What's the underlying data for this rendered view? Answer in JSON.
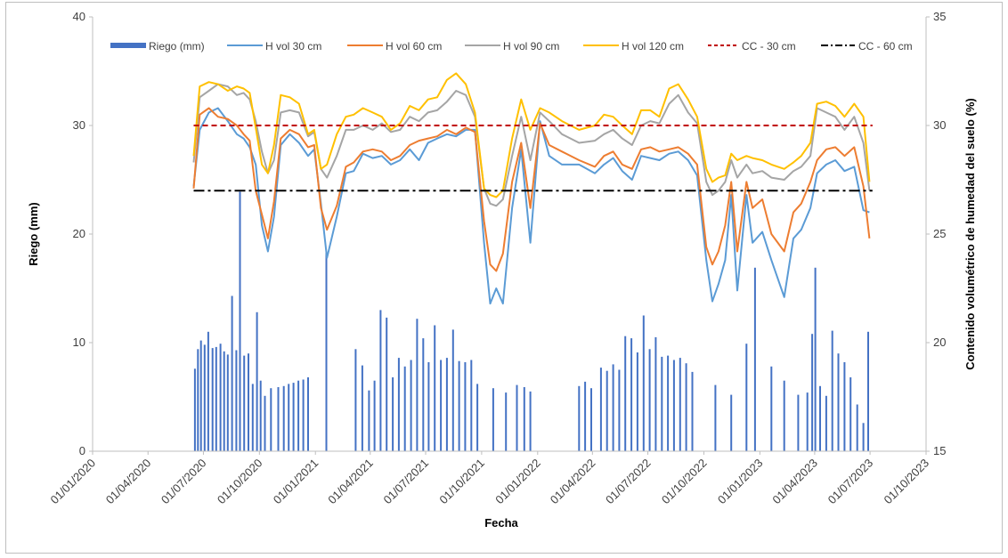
{
  "chart_data": {
    "type": "line",
    "xlabel": "Fecha",
    "ylabel": "Riego  (mm)",
    "y2label": "Contenido volumétrico de humedad  del suelo (%)",
    "ylim": [
      0,
      40
    ],
    "y2lim": [
      15,
      35
    ],
    "xlim": [
      "2020-01-01",
      "2023-10-01"
    ],
    "x_ticks": [
      "01/01/2020",
      "01/04/2020",
      "01/07/2020",
      "01/10/2020",
      "01/01/2021",
      "01/04/2021",
      "01/07/2021",
      "01/10/2021",
      "01/01/2022",
      "01/04/2022",
      "01/07/2022",
      "01/10/2022",
      "01/01/2023",
      "01/04/2023",
      "01/07/2023",
      "01/10/2023"
    ],
    "y_ticks": [
      0,
      10,
      20,
      30,
      40
    ],
    "y2_ticks": [
      15,
      20,
      25,
      30,
      35
    ],
    "grid": false,
    "legend_position": "top",
    "bars": {
      "name": "Riego (mm)",
      "color": "#4472c4",
      "x": [
        "2020-06-17",
        "2020-06-22",
        "2020-06-27",
        "2020-07-03",
        "2020-07-09",
        "2020-07-16",
        "2020-07-22",
        "2020-07-29",
        "2020-08-04",
        "2020-08-10",
        "2020-08-17",
        "2020-08-24",
        "2020-08-30",
        "2020-09-06",
        "2020-09-13",
        "2020-09-20",
        "2020-09-27",
        "2020-10-03",
        "2020-10-10",
        "2020-10-20",
        "2020-11-01",
        "2020-11-10",
        "2020-11-18",
        "2020-11-26",
        "2020-12-04",
        "2020-12-12",
        "2020-12-20",
        "2021-01-19",
        "2021-03-08",
        "2021-03-19",
        "2021-03-30",
        "2021-04-08",
        "2021-04-18",
        "2021-04-28",
        "2021-05-08",
        "2021-05-18",
        "2021-05-28",
        "2021-06-07",
        "2021-06-17",
        "2021-06-27",
        "2021-07-06",
        "2021-07-16",
        "2021-07-26",
        "2021-08-05",
        "2021-08-15",
        "2021-08-25",
        "2021-09-04",
        "2021-09-14",
        "2021-09-24",
        "2021-10-20",
        "2021-11-10",
        "2021-11-28",
        "2021-12-10",
        "2021-12-20",
        "2022-03-10",
        "2022-03-20",
        "2022-03-30",
        "2022-04-15",
        "2022-04-25",
        "2022-05-05",
        "2022-05-15",
        "2022-05-25",
        "2022-06-04",
        "2022-06-14",
        "2022-06-24",
        "2022-07-04",
        "2022-07-14",
        "2022-07-24",
        "2022-08-03",
        "2022-08-13",
        "2022-08-23",
        "2022-09-02",
        "2022-09-12",
        "2022-10-20",
        "2022-11-15",
        "2022-12-10",
        "2022-12-24",
        "2023-01-20",
        "2023-02-10",
        "2023-03-05",
        "2023-03-20",
        "2023-03-28",
        "2023-04-02",
        "2023-04-10",
        "2023-04-20",
        "2023-04-30",
        "2023-05-10",
        "2023-05-20",
        "2023-05-30",
        "2023-06-10",
        "2023-06-20",
        "2023-06-28"
      ],
      "values": [
        7.6,
        9.4,
        10.2,
        9.8,
        11,
        9.5,
        9.6,
        9.9,
        9.2,
        8.9,
        14.3,
        9.3,
        23.9,
        8.8,
        9,
        6.2,
        12.8,
        6.5,
        5.1,
        5.8,
        5.9,
        6,
        6.2,
        6.3,
        6.5,
        6.6,
        6.8,
        18.4,
        9.4,
        7.9,
        5.6,
        6.5,
        13,
        12.3,
        6.8,
        8.6,
        7.8,
        8.4,
        12.2,
        10.4,
        8.2,
        11.6,
        8.4,
        8.6,
        11.2,
        8.3,
        8.2,
        8.4,
        6.2,
        5.8,
        5.4,
        6.1,
        5.9,
        5.5,
        6,
        6.4,
        5.8,
        7.7,
        7.4,
        8,
        7.5,
        10.6,
        10.4,
        9.1,
        12.5,
        9.4,
        10.5,
        8.7,
        8.8,
        8.4,
        8.6,
        8.1,
        7.3,
        6.1,
        5.2,
        9.9,
        16.9,
        7.8,
        6.5,
        5.2,
        5.4,
        10.8,
        16.9,
        6,
        5.1,
        11.1,
        9,
        8.2,
        6.8,
        4.3,
        2.6,
        11
      ]
    },
    "series": [
      {
        "name": "H vol 30 cm",
        "color": "#5b9bd5",
        "x": [
          "2020-06-15",
          "2020-06-25",
          "2020-07-10",
          "2020-07-25",
          "2020-08-10",
          "2020-08-25",
          "2020-09-05",
          "2020-09-15",
          "2020-09-25",
          "2020-10-05",
          "2020-10-15",
          "2020-10-25",
          "2020-11-05",
          "2020-11-20",
          "2020-12-05",
          "2020-12-20",
          "2020-12-30",
          "2021-01-10",
          "2021-01-20",
          "2021-02-05",
          "2021-02-20",
          "2021-03-05",
          "2021-03-20",
          "2021-04-05",
          "2021-04-20",
          "2021-05-05",
          "2021-05-20",
          "2021-06-05",
          "2021-06-20",
          "2021-07-05",
          "2021-07-20",
          "2021-08-05",
          "2021-08-20",
          "2021-09-05",
          "2021-09-20",
          "2021-10-05",
          "2021-10-15",
          "2021-10-25",
          "2021-11-05",
          "2021-11-20",
          "2021-12-05",
          "2021-12-20",
          "2022-01-05",
          "2022-01-20",
          "2022-02-10",
          "2022-03-10",
          "2022-04-05",
          "2022-04-20",
          "2022-05-05",
          "2022-05-20",
          "2022-06-05",
          "2022-06-20",
          "2022-07-05",
          "2022-07-20",
          "2022-08-05",
          "2022-08-20",
          "2022-09-05",
          "2022-09-20",
          "2022-10-05",
          "2022-10-15",
          "2022-10-25",
          "2022-11-05",
          "2022-11-15",
          "2022-11-25",
          "2022-12-10",
          "2022-12-20",
          "2023-01-05",
          "2023-01-20",
          "2023-02-10",
          "2023-02-25",
          "2023-03-10",
          "2023-03-25",
          "2023-04-05",
          "2023-04-20",
          "2023-05-05",
          "2023-05-20",
          "2023-06-05",
          "2023-06-20",
          "2023-06-30"
        ],
        "values": [
          27.2,
          29.8,
          30.6,
          30.8,
          30.2,
          29.6,
          29.4,
          29,
          28.2,
          25.4,
          24.2,
          25.8,
          29.1,
          29.6,
          29.2,
          28.6,
          28.9,
          26.4,
          23.9,
          25.8,
          27.8,
          27.9,
          28.7,
          28.5,
          28.6,
          28.2,
          28.4,
          28.9,
          28.4,
          29.2,
          29.4,
          29.6,
          29.5,
          29.8,
          29.8,
          24.6,
          21.8,
          22.5,
          21.8,
          26.2,
          28.9,
          24.6,
          30.2,
          28.6,
          28.2,
          28.2,
          27.8,
          28.2,
          28.5,
          27.9,
          27.5,
          28.6,
          28.5,
          28.4,
          28.7,
          28.8,
          28.4,
          27.7,
          23.8,
          21.9,
          22.7,
          23.8,
          26.8,
          22.4,
          26.8,
          24.6,
          25.1,
          23.8,
          22.1,
          24.8,
          25.2,
          26.2,
          27.8,
          28.2,
          28.4,
          27.9,
          28.1,
          26.1,
          26
        ]
      },
      {
        "name": "H vol 60 cm",
        "color": "#ed7d31",
        "x": [
          "2020-06-15",
          "2020-06-25",
          "2020-07-10",
          "2020-07-25",
          "2020-08-10",
          "2020-08-25",
          "2020-09-05",
          "2020-09-15",
          "2020-09-25",
          "2020-10-05",
          "2020-10-15",
          "2020-10-25",
          "2020-11-05",
          "2020-11-20",
          "2020-12-05",
          "2020-12-20",
          "2020-12-30",
          "2021-01-10",
          "2021-01-20",
          "2021-02-05",
          "2021-02-20",
          "2021-03-05",
          "2021-03-20",
          "2021-04-05",
          "2021-04-20",
          "2021-05-05",
          "2021-05-20",
          "2021-06-05",
          "2021-06-20",
          "2021-07-05",
          "2021-07-20",
          "2021-08-05",
          "2021-08-20",
          "2021-09-05",
          "2021-09-20",
          "2021-10-05",
          "2021-10-15",
          "2021-10-25",
          "2021-11-05",
          "2021-11-20",
          "2021-12-05",
          "2021-12-20",
          "2022-01-05",
          "2022-01-20",
          "2022-02-10",
          "2022-03-10",
          "2022-04-05",
          "2022-04-20",
          "2022-05-05",
          "2022-05-20",
          "2022-06-05",
          "2022-06-20",
          "2022-07-05",
          "2022-07-20",
          "2022-08-05",
          "2022-08-20",
          "2022-09-05",
          "2022-09-20",
          "2022-10-05",
          "2022-10-15",
          "2022-10-25",
          "2022-11-05",
          "2022-11-15",
          "2022-11-25",
          "2022-12-10",
          "2022-12-20",
          "2023-01-05",
          "2023-01-20",
          "2023-02-10",
          "2023-02-25",
          "2023-03-10",
          "2023-03-25",
          "2023-04-05",
          "2023-04-20",
          "2023-05-05",
          "2023-05-20",
          "2023-06-05",
          "2023-06-20",
          "2023-06-30"
        ],
        "values": [
          27.1,
          30.5,
          30.8,
          30.4,
          30.3,
          30,
          29.6,
          29.3,
          27,
          25.9,
          24.8,
          26.5,
          29.4,
          29.8,
          29.6,
          29,
          29.1,
          26.2,
          25.2,
          26.3,
          28.1,
          28.3,
          28.8,
          28.9,
          28.8,
          28.4,
          28.6,
          29.1,
          29.3,
          29.4,
          29.5,
          29.8,
          29.6,
          29.9,
          29.7,
          25.6,
          23.6,
          23.3,
          24.1,
          27.4,
          29.2,
          26.2,
          30.1,
          29.1,
          28.8,
          28.4,
          28.1,
          28.6,
          28.8,
          28.2,
          28,
          28.9,
          29,
          28.8,
          28.9,
          29,
          28.7,
          28.2,
          24.4,
          23.6,
          24.2,
          25.4,
          27.4,
          24.2,
          27.4,
          26.2,
          26.6,
          25,
          24.2,
          26,
          26.4,
          27.4,
          28.4,
          28.9,
          29,
          28.6,
          29,
          27.2,
          24.8
        ]
      },
      {
        "name": "H vol 90 cm",
        "color": "#a5a5a5",
        "x": [
          "2020-06-15",
          "2020-06-25",
          "2020-07-10",
          "2020-07-25",
          "2020-08-10",
          "2020-08-25",
          "2020-09-05",
          "2020-09-15",
          "2020-09-25",
          "2020-10-05",
          "2020-10-15",
          "2020-10-25",
          "2020-11-05",
          "2020-11-20",
          "2020-12-05",
          "2020-12-20",
          "2020-12-30",
          "2021-01-10",
          "2021-01-20",
          "2021-02-05",
          "2021-02-20",
          "2021-03-05",
          "2021-03-20",
          "2021-04-05",
          "2021-04-20",
          "2021-05-05",
          "2021-05-20",
          "2021-06-05",
          "2021-06-20",
          "2021-07-05",
          "2021-07-20",
          "2021-08-05",
          "2021-08-20",
          "2021-09-05",
          "2021-09-20",
          "2021-10-05",
          "2021-10-15",
          "2021-10-25",
          "2021-11-05",
          "2021-11-20",
          "2021-12-05",
          "2021-12-20",
          "2022-01-05",
          "2022-01-20",
          "2022-02-10",
          "2022-03-10",
          "2022-04-05",
          "2022-04-20",
          "2022-05-05",
          "2022-05-20",
          "2022-06-05",
          "2022-06-20",
          "2022-07-05",
          "2022-07-20",
          "2022-08-05",
          "2022-08-20",
          "2022-09-05",
          "2022-09-20",
          "2022-10-05",
          "2022-10-15",
          "2022-10-25",
          "2022-11-05",
          "2022-11-15",
          "2022-11-25",
          "2022-12-10",
          "2022-12-20",
          "2023-01-05",
          "2023-01-20",
          "2023-02-10",
          "2023-02-25",
          "2023-03-10",
          "2023-03-25",
          "2023-04-05",
          "2023-04-20",
          "2023-05-05",
          "2023-05-20",
          "2023-06-05",
          "2023-06-20",
          "2023-06-30"
        ],
        "values": [
          28.3,
          31.3,
          31.6,
          31.9,
          31.8,
          31.4,
          31.5,
          31.2,
          30.2,
          28.8,
          27.8,
          28.4,
          30.6,
          30.7,
          30.6,
          29.5,
          29.7,
          28,
          27.6,
          28.6,
          29.8,
          29.8,
          30,
          29.8,
          30.1,
          29.7,
          29.8,
          30.4,
          30.2,
          30.6,
          30.7,
          31.1,
          31.6,
          31.4,
          30.4,
          27.1,
          26.4,
          26.3,
          26.6,
          28.6,
          30.4,
          28.4,
          30.6,
          30.2,
          29.6,
          29.2,
          29.3,
          29.6,
          29.8,
          29.4,
          29.1,
          30,
          30.2,
          30.1,
          31,
          31.4,
          30.6,
          30.1,
          27.4,
          26.8,
          27,
          27.4,
          28.4,
          27.6,
          28.2,
          27.8,
          27.9,
          27.6,
          27.5,
          27.9,
          28.1,
          28.6,
          30.8,
          30.6,
          30.4,
          29.8,
          30.4,
          29.2,
          27
        ]
      },
      {
        "name": "H vol 120 cm",
        "color": "#ffc000",
        "x": [
          "2020-06-15",
          "2020-06-25",
          "2020-07-10",
          "2020-07-25",
          "2020-08-10",
          "2020-08-25",
          "2020-09-05",
          "2020-09-15",
          "2020-09-25",
          "2020-10-05",
          "2020-10-15",
          "2020-10-25",
          "2020-11-05",
          "2020-11-20",
          "2020-12-05",
          "2020-12-20",
          "2020-12-30",
          "2021-01-10",
          "2021-01-20",
          "2021-02-05",
          "2021-02-20",
          "2021-03-05",
          "2021-03-20",
          "2021-04-05",
          "2021-04-20",
          "2021-05-05",
          "2021-05-20",
          "2021-06-05",
          "2021-06-20",
          "2021-07-05",
          "2021-07-20",
          "2021-08-05",
          "2021-08-20",
          "2021-09-05",
          "2021-09-20",
          "2021-10-05",
          "2021-10-15",
          "2021-10-25",
          "2021-11-05",
          "2021-11-20",
          "2021-12-05",
          "2021-12-20",
          "2022-01-05",
          "2022-01-20",
          "2022-02-10",
          "2022-03-10",
          "2022-04-05",
          "2022-04-20",
          "2022-05-05",
          "2022-05-20",
          "2022-06-05",
          "2022-06-20",
          "2022-07-05",
          "2022-07-20",
          "2022-08-05",
          "2022-08-20",
          "2022-09-05",
          "2022-09-20",
          "2022-10-05",
          "2022-10-15",
          "2022-10-25",
          "2022-11-05",
          "2022-11-15",
          "2022-11-25",
          "2022-12-10",
          "2022-12-20",
          "2023-01-05",
          "2023-01-20",
          "2023-02-10",
          "2023-02-25",
          "2023-03-10",
          "2023-03-25",
          "2023-04-05",
          "2023-04-20",
          "2023-05-05",
          "2023-05-20",
          "2023-06-05",
          "2023-06-20",
          "2023-06-30"
        ],
        "values": [
          28.6,
          31.8,
          32,
          31.9,
          31.6,
          31.8,
          31.7,
          31.5,
          29.9,
          28.2,
          27.8,
          29.1,
          31.4,
          31.3,
          31,
          29.6,
          29.8,
          28,
          28.2,
          29.6,
          30.4,
          30.5,
          30.8,
          30.6,
          30.4,
          29.8,
          30.1,
          30.9,
          30.7,
          31.2,
          31.3,
          32.1,
          32.4,
          31.9,
          30.6,
          27.1,
          26.8,
          26.7,
          27,
          29.4,
          31.2,
          29.8,
          30.8,
          30.6,
          30.2,
          29.8,
          30,
          30.5,
          30.4,
          30,
          29.6,
          30.7,
          30.7,
          30.4,
          31.7,
          31.9,
          31.2,
          30.4,
          28,
          27.4,
          27.6,
          27.7,
          28.7,
          28.4,
          28.6,
          28.5,
          28.4,
          28.2,
          28,
          28.3,
          28.6,
          29.2,
          31,
          31.1,
          30.9,
          30.4,
          31,
          30.4,
          27.4
        ]
      },
      {
        "name": "CC - 30 cm",
        "color": "#c00000",
        "dash": "dashed",
        "x": [
          "2020-06-15",
          "2023-07-05"
        ],
        "values": [
          30,
          30
        ]
      },
      {
        "name": "CC - 60 cm",
        "color": "#000000",
        "dash": "dashdot",
        "x": [
          "2020-06-15",
          "2023-07-05"
        ],
        "values": [
          27,
          27
        ]
      }
    ]
  }
}
